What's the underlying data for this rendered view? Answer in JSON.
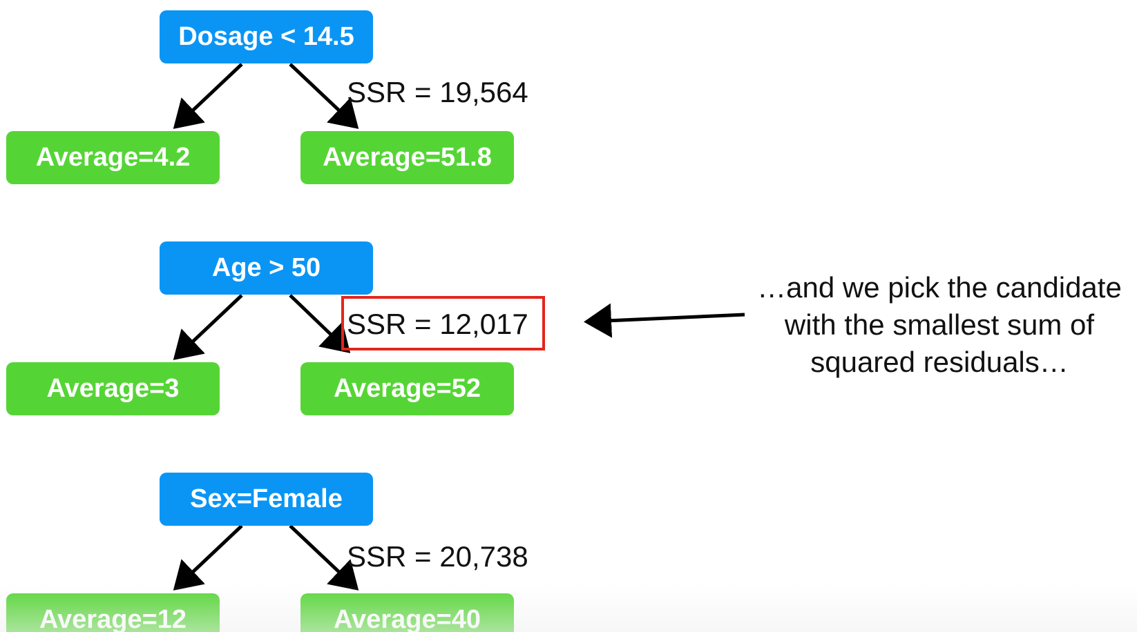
{
  "colors": {
    "root_fill": "#0a95f5",
    "leaf_fill": "#55d535",
    "highlight": "#e3261c",
    "arrow": "#000000"
  },
  "trees": [
    {
      "root": "Dosage < 14.5",
      "left_leaf": "Average=4.2",
      "right_leaf": "Average=51.8",
      "ssr": "SSR = 19,564",
      "highlighted": false
    },
    {
      "root": "Age > 50",
      "left_leaf": "Average=3",
      "right_leaf": "Average=52",
      "ssr": "SSR = 12,017",
      "highlighted": true
    },
    {
      "root": "Sex=Female",
      "left_leaf": "Average=12",
      "right_leaf": "Average=40",
      "ssr": "SSR = 20,738",
      "highlighted": false
    }
  ],
  "note": {
    "line1": "…and we pick the candidate",
    "line2": "with the smallest sum of",
    "line3": "squared residuals…"
  }
}
